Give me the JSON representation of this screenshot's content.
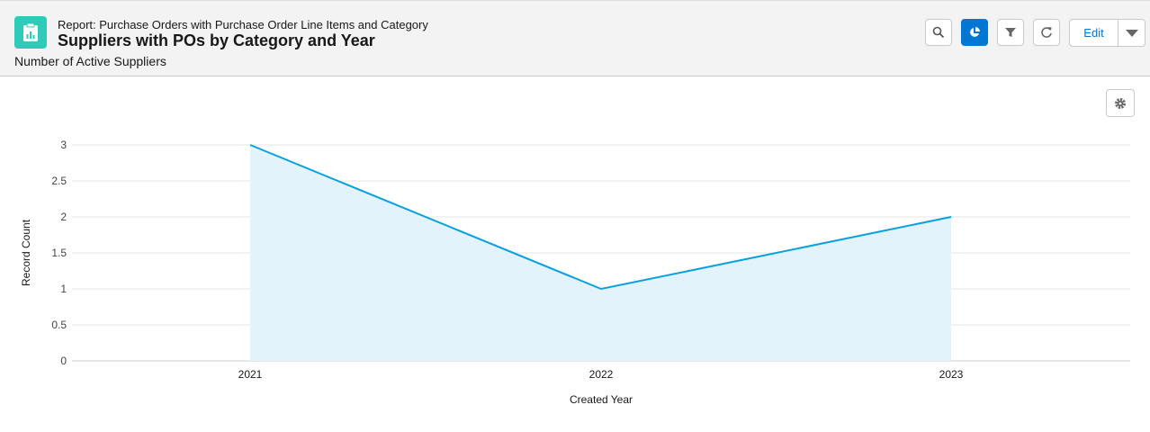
{
  "header": {
    "eyebrow": "Report: Purchase Orders with Purchase Order Line Items and Category",
    "title": "Suppliers with POs by Category and Year",
    "subtitle": "Number of Active Suppliers",
    "edit_label": "Edit",
    "icons": [
      "report-icon",
      "search-icon",
      "chart-icon",
      "filter-icon",
      "refresh-icon",
      "chevron-down-icon",
      "gear-icon"
    ]
  },
  "chart_data": {
    "type": "area",
    "categories": [
      "2021",
      "2022",
      "2023"
    ],
    "values": [
      3,
      1,
      2
    ],
    "xlabel": "Created Year",
    "ylabel": "Record Count",
    "ylim": [
      0,
      3
    ],
    "yticks": [
      "0",
      "0.5",
      "1",
      "1.5",
      "2",
      "2.5",
      "3"
    ],
    "grid": true,
    "colors": {
      "line": "#0ba0e0",
      "fill": "#e2f3fb",
      "grid": "#e5e5e5"
    }
  }
}
